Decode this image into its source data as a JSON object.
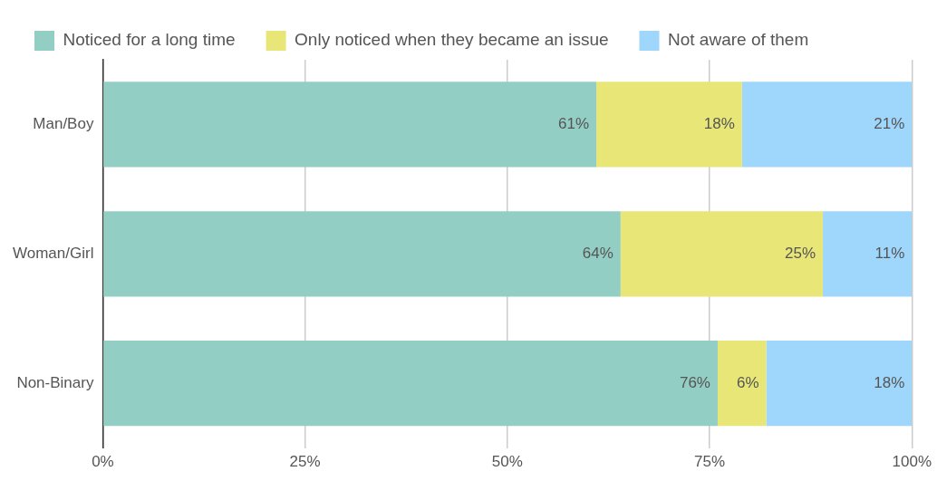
{
  "chart_data": {
    "type": "bar",
    "orientation": "horizontal",
    "stacked": true,
    "categories": [
      "Man/Boy",
      "Woman/Girl",
      "Non-Binary"
    ],
    "series": [
      {
        "name": "Noticed for a long time",
        "color": "#93cec5",
        "values": [
          61,
          64,
          76
        ],
        "value_labels": [
          "61%",
          "64%",
          "76%"
        ]
      },
      {
        "name": "Only noticed when they became an issue",
        "color": "#e7e677",
        "values": [
          18,
          25,
          6
        ],
        "value_labels": [
          "18%",
          "25%",
          "6%"
        ]
      },
      {
        "name": "Not aware of them",
        "color": "#9fd6fc",
        "values": [
          21,
          11,
          18
        ],
        "value_labels": [
          "21%",
          "11%",
          "18%"
        ]
      }
    ],
    "xlim": [
      0,
      100
    ],
    "xticks": [
      {
        "value": 0,
        "label": "0%"
      },
      {
        "value": 25,
        "label": "25%"
      },
      {
        "value": 50,
        "label": "50%"
      },
      {
        "value": 75,
        "label": "75%"
      },
      {
        "value": 100,
        "label": "100%"
      }
    ],
    "grid": "x",
    "legend": "top"
  }
}
